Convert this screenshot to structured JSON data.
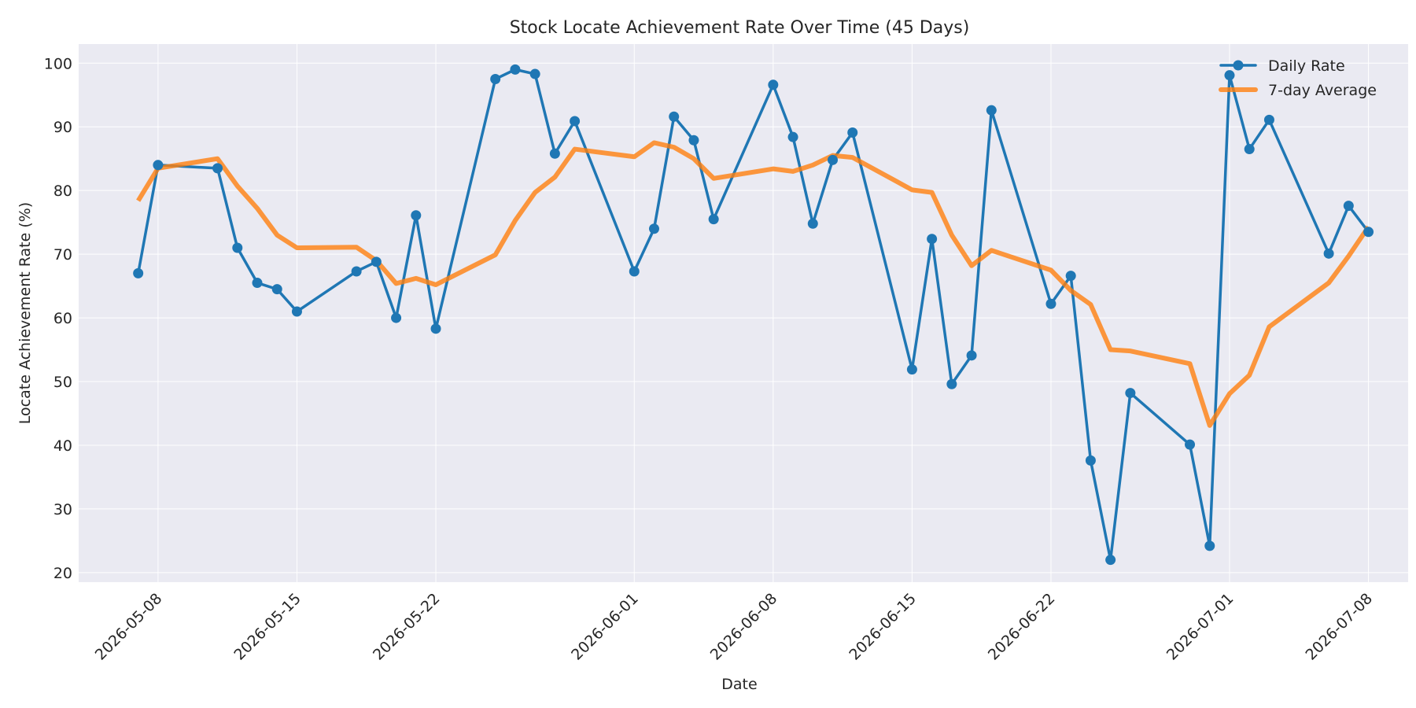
{
  "chart_data": {
    "type": "line",
    "title": "Stock Locate Achievement Rate Over Time (45 Days)",
    "xlabel": "Date",
    "ylabel": "Locate Achievement Rate (%)",
    "xlim": [
      "2026-05-04",
      "2026-07-10"
    ],
    "ylim": [
      18.5,
      103
    ],
    "x_ticks": [
      "2026-05-08",
      "2026-05-15",
      "2026-05-22",
      "2026-06-01",
      "2026-06-08",
      "2026-06-15",
      "2026-06-22",
      "2026-07-01",
      "2026-07-08"
    ],
    "y_ticks": [
      20,
      30,
      40,
      50,
      60,
      70,
      80,
      90,
      100
    ],
    "grid": true,
    "legend_position": "top-right",
    "colors": {
      "plot_background": "#eaeaf2",
      "grid": "#ffffff"
    },
    "series": [
      {
        "name": "Daily Rate",
        "color": "#1f77b4",
        "marker": "circle",
        "x": [
          "2026-05-07",
          "2026-05-08",
          "2026-05-11",
          "2026-05-12",
          "2026-05-13",
          "2026-05-14",
          "2026-05-15",
          "2026-05-18",
          "2026-05-19",
          "2026-05-20",
          "2026-05-21",
          "2026-05-22",
          "2026-05-25",
          "2026-05-26",
          "2026-05-27",
          "2026-05-28",
          "2026-05-29",
          "2026-06-01",
          "2026-06-02",
          "2026-06-03",
          "2026-06-04",
          "2026-06-05",
          "2026-06-08",
          "2026-06-09",
          "2026-06-10",
          "2026-06-11",
          "2026-06-12",
          "2026-06-15",
          "2026-06-16",
          "2026-06-17",
          "2026-06-18",
          "2026-06-19",
          "2026-06-22",
          "2026-06-23",
          "2026-06-24",
          "2026-06-25",
          "2026-06-26",
          "2026-06-29",
          "2026-06-30",
          "2026-07-01",
          "2026-07-02",
          "2026-07-03",
          "2026-07-06",
          "2026-07-07",
          "2026-07-08"
        ],
        "values": [
          67.0,
          84.0,
          83.5,
          71.0,
          65.5,
          64.5,
          61.0,
          67.3,
          68.8,
          60.0,
          76.1,
          58.3,
          97.5,
          99.0,
          98.3,
          85.8,
          90.9,
          67.3,
          74.0,
          91.6,
          87.9,
          75.5,
          96.6,
          88.4,
          74.8,
          84.8,
          89.1,
          51.9,
          72.4,
          49.6,
          54.1,
          92.6,
          62.2,
          66.6,
          37.6,
          22.0,
          48.2,
          40.1,
          24.2,
          98.1,
          86.5,
          91.1,
          70.1,
          77.6,
          73.5
        ]
      },
      {
        "name": "7-day Average",
        "color": "#ff7f0e",
        "marker": "none",
        "x": [
          "2026-05-07",
          "2026-05-08",
          "2026-05-11",
          "2026-05-12",
          "2026-05-13",
          "2026-05-14",
          "2026-05-15",
          "2026-05-18",
          "2026-05-19",
          "2026-05-20",
          "2026-05-21",
          "2026-05-22",
          "2026-05-25",
          "2026-05-26",
          "2026-05-27",
          "2026-05-28",
          "2026-05-29",
          "2026-06-01",
          "2026-06-02",
          "2026-06-03",
          "2026-06-04",
          "2026-06-05",
          "2026-06-08",
          "2026-06-09",
          "2026-06-10",
          "2026-06-11",
          "2026-06-12",
          "2026-06-15",
          "2026-06-16",
          "2026-06-17",
          "2026-06-18",
          "2026-06-19",
          "2026-06-22",
          "2026-06-23",
          "2026-06-24",
          "2026-06-25",
          "2026-06-26",
          "2026-06-29",
          "2026-06-30",
          "2026-07-01",
          "2026-07-02",
          "2026-07-03",
          "2026-07-06",
          "2026-07-07",
          "2026-07-08"
        ],
        "values": [
          78.4,
          83.5,
          85.0,
          80.7,
          77.2,
          73.0,
          71.0,
          71.1,
          69.0,
          65.4,
          66.2,
          65.2,
          69.9,
          75.3,
          79.7,
          82.1,
          86.5,
          85.3,
          87.5,
          86.8,
          85.0,
          81.9,
          83.4,
          83.0,
          84.0,
          85.5,
          85.2,
          80.1,
          79.7,
          73.0,
          68.2,
          70.6,
          67.5,
          64.3,
          62.1,
          55.0,
          54.8,
          52.8,
          43.1,
          48.1,
          51.0,
          58.6,
          65.5,
          69.7,
          74.3
        ]
      }
    ]
  }
}
